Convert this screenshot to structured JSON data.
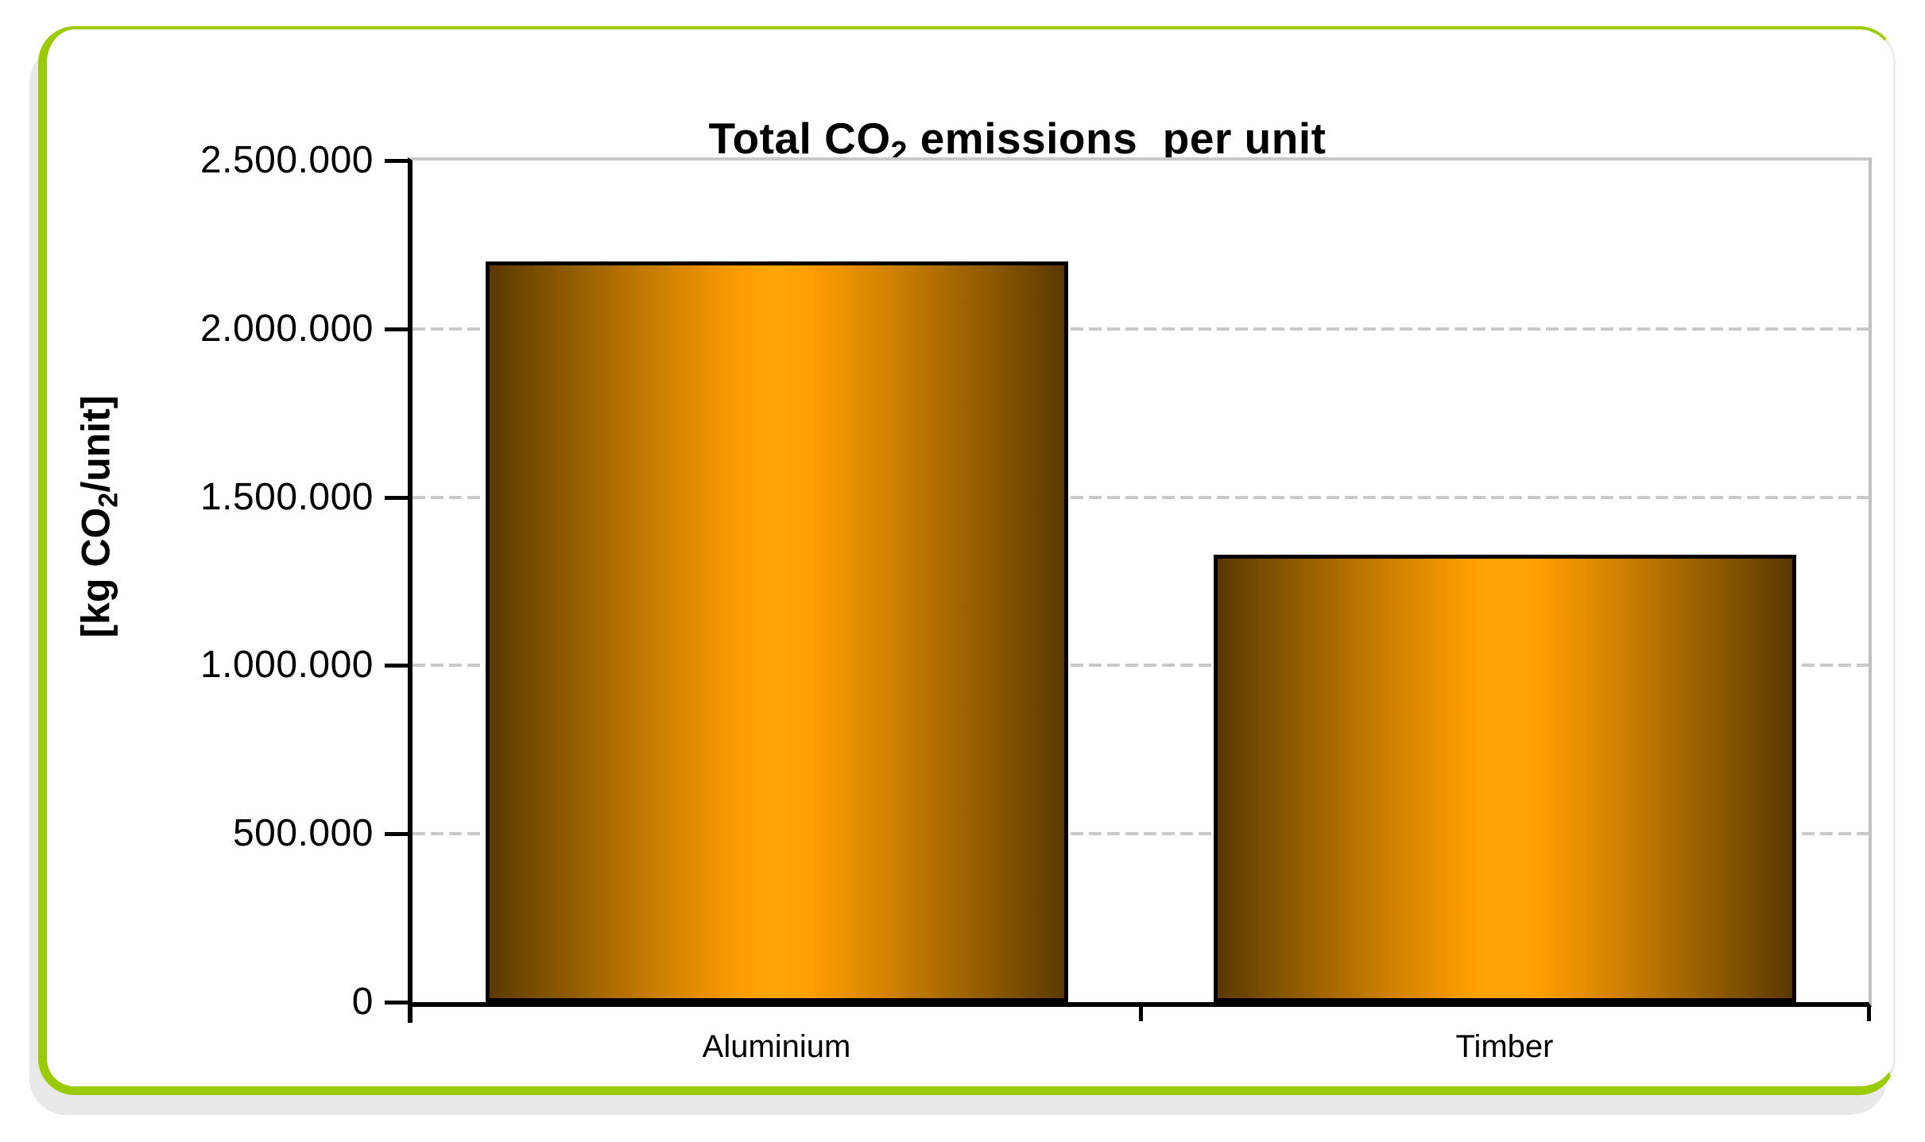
{
  "title": {
    "pre": "Total CO",
    "sub": "2",
    "post": " emissions  per unit"
  },
  "y_axis": {
    "label_pre": "[kg CO",
    "label_sub": "2",
    "label_post": "/unit]",
    "tick_labels": [
      "2.500.000",
      "2.000.000",
      "1.500.000",
      "1.000.000",
      "500.000",
      "0"
    ]
  },
  "colors": {
    "card_border_green": "#9aca00",
    "shadow_gray": "#e9e9e9",
    "plot_border_gray": "#c0c0c0",
    "gridline_gray": "#c9c9c9",
    "bar_center_orange": "#ff9e00",
    "bar_edge_brown": "#5a3800",
    "bar_outline": "#000000"
  },
  "chart_data": {
    "type": "bar",
    "title": "Total CO2 emissions  per unit",
    "categories": [
      "Aluminium",
      "Timber"
    ],
    "values": [
      2200000,
      1330000
    ],
    "xlabel": "",
    "ylabel": "[kg CO2/unit]",
    "ylim": [
      0,
      2500000
    ],
    "ytick_interval": 500000,
    "ytick_labels": [
      "2.500.000",
      "2.000.000",
      "1.500.000",
      "1.000.000",
      "500.000",
      "0"
    ],
    "grid": "horizontal-dashed",
    "legend_position": "none",
    "bar_style": "horizontal-gradient-cylinder",
    "bar_width_fraction": 0.4
  }
}
